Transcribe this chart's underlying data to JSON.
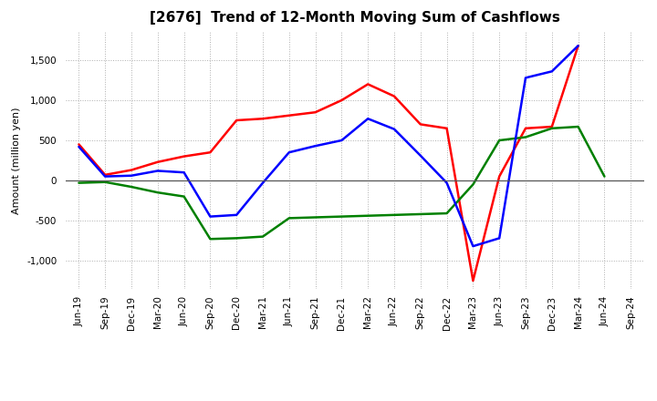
{
  "title": "[2676]  Trend of 12-Month Moving Sum of Cashflows",
  "ylabel": "Amount (million yen)",
  "x_labels": [
    "Jun-19",
    "Sep-19",
    "Dec-19",
    "Mar-20",
    "Jun-20",
    "Sep-20",
    "Dec-20",
    "Mar-21",
    "Jun-21",
    "Sep-21",
    "Dec-21",
    "Mar-22",
    "Jun-22",
    "Sep-22",
    "Dec-22",
    "Mar-23",
    "Jun-23",
    "Sep-23",
    "Dec-23",
    "Mar-24",
    "Jun-24",
    "Sep-24"
  ],
  "operating": [
    450,
    70,
    130,
    230,
    300,
    350,
    750,
    770,
    810,
    850,
    1000,
    1200,
    1050,
    700,
    650,
    -1250,
    50,
    650,
    670,
    1680,
    null,
    null
  ],
  "investing": [
    -30,
    -20,
    -80,
    -150,
    -200,
    -730,
    -720,
    -700,
    -470,
    -460,
    -450,
    -440,
    -430,
    -420,
    -410,
    -50,
    500,
    540,
    650,
    670,
    50,
    null
  ],
  "free": [
    420,
    50,
    60,
    120,
    100,
    -450,
    -430,
    -30,
    350,
    430,
    500,
    770,
    640,
    310,
    -30,
    -820,
    -720,
    1280,
    1360,
    1680,
    null,
    null
  ],
  "line_colors": {
    "operating": "#ff0000",
    "investing": "#008000",
    "free": "#0000ff"
  },
  "ylim": [
    -1350,
    1850
  ],
  "yticks": [
    -1000,
    -500,
    0,
    500,
    1000,
    1500
  ],
  "grid_color": "#999999",
  "background_color": "#ffffff",
  "title_fontsize": 11,
  "ylabel_fontsize": 8,
  "tick_fontsize": 7.5
}
